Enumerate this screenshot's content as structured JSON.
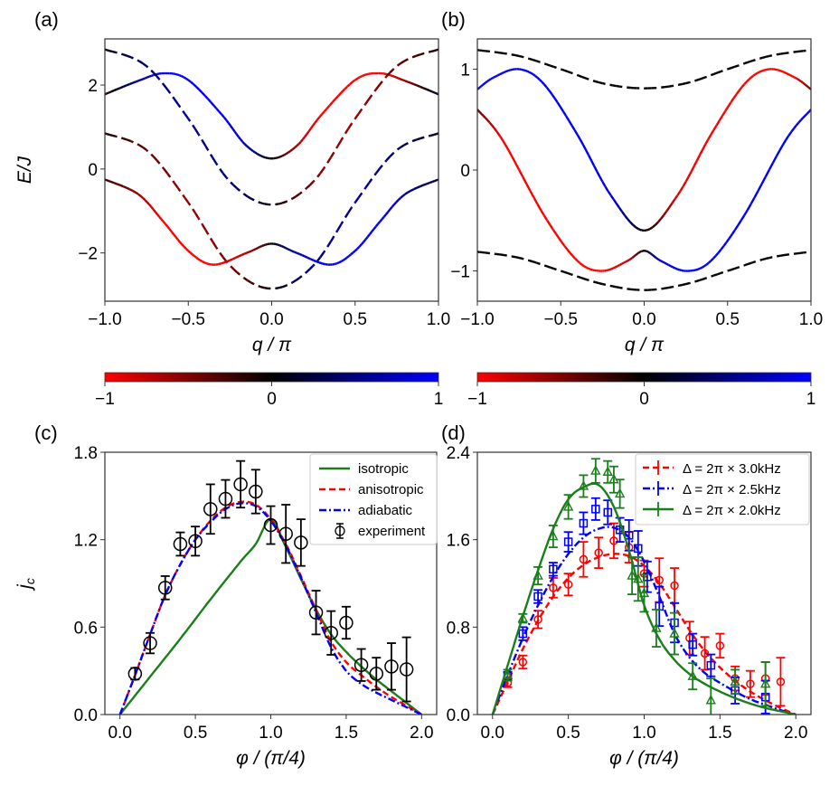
{
  "chart_data": [
    {
      "id": "a",
      "type": "line",
      "panel_label": "(a)",
      "xlabel": "q / π",
      "ylabel": "E/J",
      "xlim": [
        -1.0,
        1.0
      ],
      "ylim": [
        -3.15,
        3.1
      ],
      "xticks": [
        -1.0,
        -0.5,
        0.0,
        0.5,
        1.0
      ],
      "xtick_labels": [
        "−1.0",
        "−0.5",
        "0.0",
        "0.5",
        "1.0"
      ],
      "yticks": [
        -2,
        0,
        2
      ],
      "ytick_labels": [
        "−2",
        "0",
        "2"
      ],
      "grid": false,
      "color_encoding": "line color = polarization (−1 red … 0 black … 1 blue)",
      "series": [
        {
          "name": "upper solid band",
          "style": "solid",
          "x": [
            -1.0,
            -0.8,
            -0.65,
            -0.5,
            -0.3,
            -0.15,
            0.0,
            0.15,
            0.3,
            0.5,
            0.65,
            0.8,
            1.0
          ],
          "y": [
            1.78,
            2.1,
            2.28,
            2.12,
            1.3,
            0.55,
            0.25,
            0.55,
            1.3,
            2.12,
            2.28,
            2.1,
            1.78
          ],
          "polarization": [
            -0.2,
            0.6,
            1.0,
            1.0,
            1.0,
            0.7,
            0.0,
            -0.7,
            -1.0,
            -1.0,
            -1.0,
            -0.6,
            0.2
          ]
        },
        {
          "name": "upper dashed band",
          "style": "dashed",
          "x": [
            -1.0,
            -0.75,
            -0.5,
            -0.25,
            0.0,
            0.25,
            0.5,
            0.75,
            1.0
          ],
          "y": [
            2.85,
            2.45,
            1.2,
            -0.3,
            -0.85,
            -0.3,
            1.2,
            2.45,
            2.85
          ],
          "polarization": [
            0.1,
            0.4,
            0.6,
            0.5,
            0.0,
            -0.5,
            -0.6,
            -0.4,
            -0.1
          ]
        },
        {
          "name": "lower dashed band",
          "style": "dashed",
          "x": [
            -1.0,
            -0.75,
            -0.5,
            -0.25,
            0.0,
            0.25,
            0.5,
            0.75,
            1.0
          ],
          "y": [
            0.85,
            0.45,
            -0.8,
            -2.3,
            -2.85,
            -2.3,
            -0.8,
            0.45,
            0.85
          ],
          "polarization": [
            -0.1,
            -0.4,
            -0.6,
            -0.5,
            0.0,
            0.5,
            0.6,
            0.4,
            0.1
          ]
        },
        {
          "name": "lower solid band",
          "style": "solid",
          "x": [
            -1.0,
            -0.8,
            -0.65,
            -0.5,
            -0.35,
            -0.15,
            0.0,
            0.15,
            0.35,
            0.5,
            0.65,
            0.8,
            1.0
          ],
          "y": [
            -0.25,
            -0.6,
            -1.25,
            -1.95,
            -2.28,
            -2.0,
            -1.78,
            -2.0,
            -2.28,
            -1.95,
            -1.25,
            -0.6,
            -0.25
          ],
          "polarization": [
            -0.2,
            -0.6,
            -1.0,
            -1.0,
            -1.0,
            -0.7,
            0.0,
            0.7,
            1.0,
            1.0,
            1.0,
            0.6,
            0.2
          ]
        }
      ],
      "colorbar": {
        "min": -1,
        "max": 1,
        "ticks": [
          "−1",
          "0",
          "1"
        ],
        "colors": [
          "#ff0000",
          "#000000",
          "#0000ff"
        ]
      }
    },
    {
      "id": "b",
      "type": "line",
      "panel_label": "(b)",
      "xlabel": "q / π",
      "ylabel": "",
      "xlim": [
        -1.0,
        1.0
      ],
      "ylim": [
        -1.3,
        1.3
      ],
      "xticks": [
        -1.0,
        -0.5,
        0.0,
        0.5,
        1.0
      ],
      "xtick_labels": [
        "−1.0",
        "−0.5",
        "0.0",
        "0.5",
        "1.0"
      ],
      "yticks": [
        -1,
        0,
        1
      ],
      "ytick_labels": [
        "−1",
        "0",
        "1"
      ],
      "grid": false,
      "series": [
        {
          "name": "upper dashed band",
          "style": "dashed",
          "x": [
            -1.0,
            -0.75,
            -0.5,
            -0.25,
            0.0,
            0.25,
            0.5,
            0.75,
            1.0
          ],
          "y": [
            1.19,
            1.13,
            1.0,
            0.86,
            0.81,
            0.86,
            1.0,
            1.13,
            1.19
          ],
          "polarization": [
            0,
            0,
            0,
            0,
            0,
            0,
            0,
            0,
            0
          ]
        },
        {
          "name": "upper solid band",
          "style": "solid",
          "x": [
            -1.0,
            -0.9,
            -0.75,
            -0.6,
            -0.4,
            -0.2,
            0.0,
            0.2,
            0.4,
            0.6,
            0.75,
            0.9,
            1.0
          ],
          "y": [
            0.8,
            0.92,
            1.0,
            0.85,
            0.35,
            -0.25,
            -0.6,
            -0.25,
            0.35,
            0.85,
            1.0,
            0.92,
            0.8
          ],
          "polarization": [
            0.9,
            1.0,
            1.0,
            1.0,
            1.0,
            0.9,
            0.0,
            -0.9,
            -1.0,
            -1.0,
            -1.0,
            -1.0,
            -0.4
          ]
        },
        {
          "name": "lower solid band",
          "style": "solid",
          "x": [
            -1.0,
            -0.85,
            -0.6,
            -0.4,
            -0.25,
            -0.1,
            0.0,
            0.1,
            0.25,
            0.4,
            0.6,
            0.85,
            1.0
          ],
          "y": [
            0.6,
            0.3,
            -0.45,
            -0.9,
            -1.0,
            -0.9,
            -0.8,
            -0.9,
            -1.0,
            -0.9,
            -0.45,
            0.3,
            0.6
          ],
          "polarization": [
            -0.4,
            -1.0,
            -1.0,
            -1.0,
            -1.0,
            -0.8,
            0.0,
            0.8,
            1.0,
            1.0,
            1.0,
            1.0,
            0.9
          ]
        },
        {
          "name": "lower dashed band",
          "style": "dashed",
          "x": [
            -1.0,
            -0.75,
            -0.5,
            -0.25,
            0.0,
            0.25,
            0.5,
            0.75,
            1.0
          ],
          "y": [
            -0.81,
            -0.87,
            -1.0,
            -1.13,
            -1.19,
            -1.13,
            -1.0,
            -0.87,
            -0.81
          ],
          "polarization": [
            0,
            0,
            0,
            0,
            0,
            0,
            0,
            0,
            0
          ]
        }
      ],
      "colorbar": {
        "min": -1,
        "max": 1,
        "ticks": [
          "−1",
          "0",
          "1"
        ],
        "colors": [
          "#ff0000",
          "#000000",
          "#0000ff"
        ]
      }
    },
    {
      "id": "c",
      "type": "line",
      "panel_label": "(c)",
      "xlabel": "φ / (π/4)",
      "ylabel": "j_c",
      "xlim": [
        -0.1,
        2.1
      ],
      "ylim": [
        0.0,
        1.8
      ],
      "xticks": [
        0.0,
        0.5,
        1.0,
        1.5,
        2.0
      ],
      "xtick_labels": [
        "0.0",
        "0.5",
        "1.0",
        "1.5",
        "2.0"
      ],
      "yticks": [
        0.0,
        0.6,
        1.2,
        1.8
      ],
      "ytick_labels": [
        "0.0",
        "0.6",
        "1.2",
        "1.8"
      ],
      "grid": false,
      "legend_position": "top-right",
      "series": [
        {
          "name": "isotropic",
          "style": "solid",
          "color": "#1a7f1a",
          "x": [
            0.0,
            0.2,
            0.4,
            0.6,
            0.8,
            0.9,
            1.0,
            1.1,
            1.2,
            1.3,
            1.4,
            1.5,
            1.6,
            1.7,
            1.8,
            1.9,
            2.0
          ],
          "y": [
            0.0,
            0.26,
            0.52,
            0.79,
            1.05,
            1.17,
            1.34,
            1.15,
            0.93,
            0.72,
            0.55,
            0.43,
            0.33,
            0.24,
            0.16,
            0.08,
            0.0
          ]
        },
        {
          "name": "anisotropic",
          "style": "dashed",
          "color": "#ff0000",
          "x": [
            0.0,
            0.1,
            0.2,
            0.3,
            0.4,
            0.5,
            0.6,
            0.7,
            0.8,
            0.9,
            1.0,
            1.1,
            1.2,
            1.3,
            1.4,
            1.5,
            1.6,
            1.7,
            1.8,
            1.9,
            2.0
          ],
          "y": [
            0.0,
            0.27,
            0.55,
            0.82,
            1.03,
            1.2,
            1.33,
            1.42,
            1.46,
            1.44,
            1.34,
            1.17,
            0.95,
            0.72,
            0.5,
            0.36,
            0.27,
            0.19,
            0.12,
            0.06,
            0.0
          ]
        },
        {
          "name": "adiabatic",
          "style": "dashdot",
          "color": "#0000ff",
          "x": [
            0.0,
            0.1,
            0.2,
            0.3,
            0.4,
            0.5,
            0.6,
            0.7,
            0.8,
            0.9,
            1.0,
            1.1,
            1.2,
            1.3,
            1.4,
            1.5,
            1.6,
            1.7,
            1.8,
            1.9,
            2.0
          ],
          "y": [
            0.0,
            0.27,
            0.55,
            0.82,
            1.03,
            1.2,
            1.32,
            1.41,
            1.45,
            1.43,
            1.33,
            1.16,
            0.94,
            0.7,
            0.46,
            0.3,
            0.21,
            0.15,
            0.1,
            0.05,
            0.0
          ]
        },
        {
          "name": "experiment",
          "style": "markers",
          "marker": "open-circle",
          "color": "#000000",
          "x": [
            0.1,
            0.2,
            0.3,
            0.4,
            0.5,
            0.6,
            0.7,
            0.8,
            0.9,
            1.0,
            1.1,
            1.2,
            1.3,
            1.4,
            1.5,
            1.6,
            1.7,
            1.8,
            1.9
          ],
          "y": [
            0.28,
            0.49,
            0.87,
            1.17,
            1.19,
            1.41,
            1.48,
            1.58,
            1.53,
            1.3,
            1.24,
            1.18,
            0.7,
            0.56,
            0.63,
            0.34,
            0.28,
            0.33,
            0.31
          ],
          "yerr": [
            0.04,
            0.07,
            0.08,
            0.08,
            0.1,
            0.17,
            0.13,
            0.16,
            0.15,
            0.13,
            0.2,
            0.16,
            0.15,
            0.15,
            0.11,
            0.11,
            0.11,
            0.16,
            0.22
          ]
        }
      ]
    },
    {
      "id": "d",
      "type": "line",
      "panel_label": "(d)",
      "xlabel": "φ / (π/4)",
      "ylabel": "",
      "xlim": [
        -0.1,
        2.1
      ],
      "ylim": [
        0.0,
        2.4
      ],
      "xticks": [
        0.0,
        0.5,
        1.0,
        1.5,
        2.0
      ],
      "xtick_labels": [
        "0.0",
        "0.5",
        "1.0",
        "1.5",
        "2.0"
      ],
      "yticks": [
        0.0,
        0.8,
        1.6,
        2.4
      ],
      "ytick_labels": [
        "0.0",
        "0.8",
        "1.6",
        "2.4"
      ],
      "grid": false,
      "legend_position": "top-right",
      "series": [
        {
          "name": "Δ = 2π × 3.0kHz",
          "style": "dashed",
          "marker": "open-circle",
          "color": "#ff0000",
          "x": [
            0.0,
            0.1,
            0.2,
            0.3,
            0.4,
            0.5,
            0.6,
            0.7,
            0.8,
            0.9,
            1.0,
            1.1,
            1.2,
            1.3,
            1.4,
            1.5,
            1.6,
            1.7,
            1.8,
            1.9,
            2.0
          ],
          "y": [
            0.0,
            0.3,
            0.6,
            0.86,
            1.08,
            1.25,
            1.37,
            1.44,
            1.47,
            1.45,
            1.36,
            1.2,
            0.99,
            0.77,
            0.58,
            0.43,
            0.31,
            0.21,
            0.13,
            0.06,
            0.0
          ],
          "points_x": [
            0.1,
            0.2,
            0.3,
            0.4,
            0.5,
            0.6,
            0.7,
            0.8,
            0.9,
            1.0,
            1.1,
            1.2,
            1.3,
            1.4,
            1.5,
            1.6,
            1.7,
            1.8,
            1.9
          ],
          "points_y": [
            0.29,
            0.48,
            0.87,
            1.16,
            1.19,
            1.42,
            1.48,
            1.59,
            1.53,
            1.29,
            1.23,
            1.18,
            0.7,
            0.56,
            0.63,
            0.33,
            0.28,
            0.33,
            0.3
          ],
          "yerr": [
            0.04,
            0.06,
            0.08,
            0.09,
            0.1,
            0.16,
            0.14,
            0.16,
            0.14,
            0.12,
            0.2,
            0.16,
            0.15,
            0.15,
            0.11,
            0.11,
            0.12,
            0.15,
            0.22
          ]
        },
        {
          "name": "Δ = 2π × 2.5kHz",
          "style": "dashdot",
          "marker": "open-square",
          "color": "#0000ff",
          "x": [
            0.0,
            0.1,
            0.2,
            0.3,
            0.4,
            0.5,
            0.6,
            0.7,
            0.8,
            0.9,
            1.0,
            1.1,
            1.2,
            1.3,
            1.4,
            1.5,
            1.6,
            1.7,
            1.8,
            1.9,
            2.0
          ],
          "y": [
            0.0,
            0.36,
            0.7,
            1.0,
            1.26,
            1.47,
            1.62,
            1.7,
            1.71,
            1.62,
            1.4,
            1.08,
            0.74,
            0.52,
            0.38,
            0.29,
            0.21,
            0.14,
            0.09,
            0.04,
            0.0
          ],
          "points_x": [
            0.1,
            0.2,
            0.3,
            0.4,
            0.5,
            0.6,
            0.68,
            0.76,
            0.84,
            0.9,
            0.96,
            1.02,
            1.1,
            1.2,
            1.32,
            1.44,
            1.6,
            1.8
          ],
          "points_y": [
            0.35,
            0.74,
            1.08,
            1.33,
            1.58,
            1.75,
            1.88,
            1.85,
            1.69,
            1.64,
            1.52,
            1.26,
            0.99,
            0.84,
            0.64,
            0.45,
            0.22,
            0.16
          ],
          "yerr": [
            0.04,
            0.06,
            0.06,
            0.06,
            0.09,
            0.1,
            0.1,
            0.11,
            0.11,
            0.14,
            0.16,
            0.14,
            0.18,
            0.18,
            0.1,
            0.1,
            0.12,
            0.15
          ]
        },
        {
          "name": "Δ = 2π × 2.0kHz",
          "style": "solid",
          "marker": "open-triangle",
          "color": "#1a7f1a",
          "x": [
            0.0,
            0.1,
            0.2,
            0.3,
            0.4,
            0.5,
            0.6,
            0.7,
            0.8,
            0.9,
            1.0,
            1.1,
            1.2,
            1.3,
            1.4,
            1.5,
            1.6,
            1.7,
            1.8,
            1.9,
            2.0
          ],
          "y": [
            0.0,
            0.45,
            0.9,
            1.32,
            1.7,
            1.97,
            2.08,
            2.1,
            1.9,
            1.5,
            1.0,
            0.69,
            0.5,
            0.37,
            0.28,
            0.21,
            0.15,
            0.1,
            0.06,
            0.03,
            0.0
          ],
          "points_x": [
            0.1,
            0.2,
            0.3,
            0.4,
            0.5,
            0.6,
            0.68,
            0.76,
            0.8,
            0.84,
            0.92,
            0.96,
            1.0,
            1.08,
            1.2,
            1.32,
            1.44,
            1.6,
            1.8
          ],
          "points_y": [
            0.36,
            0.88,
            1.27,
            1.63,
            1.9,
            2.09,
            2.23,
            2.22,
            2.15,
            2.02,
            1.27,
            1.24,
            1.11,
            0.79,
            0.74,
            0.35,
            0.13,
            0.3,
            0.28
          ],
          "yerr": [
            0.05,
            0.04,
            0.08,
            0.1,
            0.11,
            0.1,
            0.11,
            0.1,
            0.12,
            0.13,
            0.17,
            0.2,
            0.17,
            0.17,
            0.19,
            0.12,
            0.2,
            0.11,
            0.2
          ]
        }
      ]
    }
  ]
}
